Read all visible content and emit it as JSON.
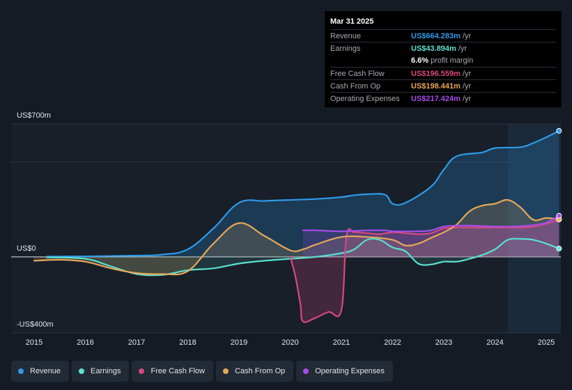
{
  "tooltip": {
    "date": "Mar 31 2025",
    "rows": [
      {
        "label": "Revenue",
        "value": "US$664.283m",
        "unit": "/yr",
        "color": "#2f9ae8"
      },
      {
        "label": "Earnings",
        "value": "US$43.894m",
        "unit": "/yr",
        "color": "#5ce0d0"
      },
      {
        "label": "",
        "value": "6.6%",
        "unit": "profit margin",
        "color": "#ffffff"
      },
      {
        "label": "Free Cash Flow",
        "value": "US$196.559m",
        "unit": "/yr",
        "color": "#d9487f"
      },
      {
        "label": "Cash From Op",
        "value": "US$198.441m",
        "unit": "/yr",
        "color": "#e8a85a"
      },
      {
        "label": "Operating Expenses",
        "value": "US$217.424m",
        "unit": "/yr",
        "color": "#a64de8"
      }
    ]
  },
  "yaxis": {
    "top_label": "US$700m",
    "zero_label": "US$0",
    "bottom_label": "-US$400m"
  },
  "legend": [
    {
      "label": "Revenue",
      "color": "#2f9ae8"
    },
    {
      "label": "Earnings",
      "color": "#5ce0d0"
    },
    {
      "label": "Free Cash Flow",
      "color": "#d9487f"
    },
    {
      "label": "Cash From Op",
      "color": "#e8a85a"
    },
    {
      "label": "Operating Expenses",
      "color": "#a64de8"
    }
  ],
  "chart_data": {
    "type": "area",
    "ylim": [
      -400,
      700
    ],
    "x_ticks": [
      "2015",
      "2016",
      "2017",
      "2018",
      "2019",
      "2020",
      "2021",
      "2022",
      "2023",
      "2024",
      "2025"
    ],
    "highlight_start": 2024.25,
    "series": [
      {
        "name": "Revenue",
        "color": "#2f9ae8",
        "x": [
          2015.25,
          2016,
          2017,
          2017.5,
          2018,
          2018.5,
          2019,
          2019.5,
          2020,
          2020.5,
          2021,
          2021.25,
          2021.5,
          2021.85,
          2022,
          2022.25,
          2022.75,
          2023,
          2023.25,
          2023.75,
          2024,
          2024.5,
          2024.75,
          2025,
          2025.25
        ],
        "y": [
          2,
          3,
          7,
          12,
          40,
          150,
          285,
          295,
          300,
          305,
          315,
          325,
          330,
          328,
          280,
          285,
          370,
          460,
          530,
          550,
          573,
          578,
          600,
          630,
          664
        ]
      },
      {
        "name": "Earnings",
        "color": "#5ce0d0",
        "x": [
          2015.25,
          2016,
          2016.5,
          2017,
          2017.5,
          2018,
          2018.5,
          2019,
          2019.5,
          2020,
          2020.5,
          2021,
          2021.25,
          2021.5,
          2021.75,
          2022,
          2022.25,
          2022.5,
          2022.75,
          2023,
          2023.25,
          2023.5,
          2023.75,
          2024,
          2024.25,
          2024.5,
          2024.75,
          2025,
          2025.25
        ],
        "y": [
          -2,
          -10,
          -50,
          -90,
          -95,
          -70,
          -60,
          -35,
          -20,
          -10,
          0,
          20,
          40,
          90,
          90,
          50,
          30,
          -35,
          -40,
          -25,
          -25,
          -10,
          10,
          40,
          90,
          95,
          90,
          70,
          44
        ]
      },
      {
        "name": "Free Cash Flow",
        "color": "#d9487f",
        "x": [
          2020,
          2020.1,
          2020.2,
          2020.25,
          2020.5,
          2020.75,
          2021,
          2021.1,
          2021.25,
          2021.5,
          2021.75,
          2022,
          2022.25,
          2022.5,
          2022.75,
          2023,
          2023.25,
          2023.5,
          2023.75,
          2024,
          2024.25,
          2024.5,
          2024.75,
          2025,
          2025.25
        ],
        "y": [
          0,
          -100,
          -250,
          -340,
          -320,
          -290,
          -280,
          110,
          130,
          125,
          120,
          130,
          125,
          120,
          125,
          150,
          155,
          155,
          155,
          155,
          155,
          155,
          160,
          175,
          197
        ]
      },
      {
        "name": "Cash From Op",
        "color": "#e8a85a",
        "x": [
          2015,
          2015.5,
          2016,
          2016.5,
          2017,
          2017.5,
          2018,
          2018.5,
          2019,
          2019.5,
          2020,
          2020.25,
          2020.5,
          2021,
          2021.5,
          2022,
          2022.25,
          2022.5,
          2022.75,
          2023,
          2023.25,
          2023.5,
          2023.75,
          2024,
          2024.25,
          2024.5,
          2024.75,
          2025,
          2025.25
        ],
        "y": [
          -20,
          -15,
          -25,
          -60,
          -85,
          -90,
          -75,
          70,
          178,
          110,
          35,
          40,
          65,
          105,
          105,
          90,
          60,
          70,
          100,
          130,
          170,
          240,
          270,
          280,
          300,
          260,
          195,
          205,
          198
        ]
      },
      {
        "name": "Operating Expenses",
        "color": "#a64de8",
        "x": [
          2020.25,
          2020.5,
          2021,
          2021.5,
          2021.85,
          2022,
          2022.5,
          2022.75,
          2023,
          2023.25,
          2023.5,
          2024,
          2024.25,
          2024.5,
          2024.75,
          2025,
          2025.25
        ],
        "y": [
          140,
          140,
          135,
          140,
          140,
          135,
          135,
          140,
          160,
          165,
          165,
          160,
          160,
          162,
          168,
          180,
          217
        ]
      }
    ]
  }
}
